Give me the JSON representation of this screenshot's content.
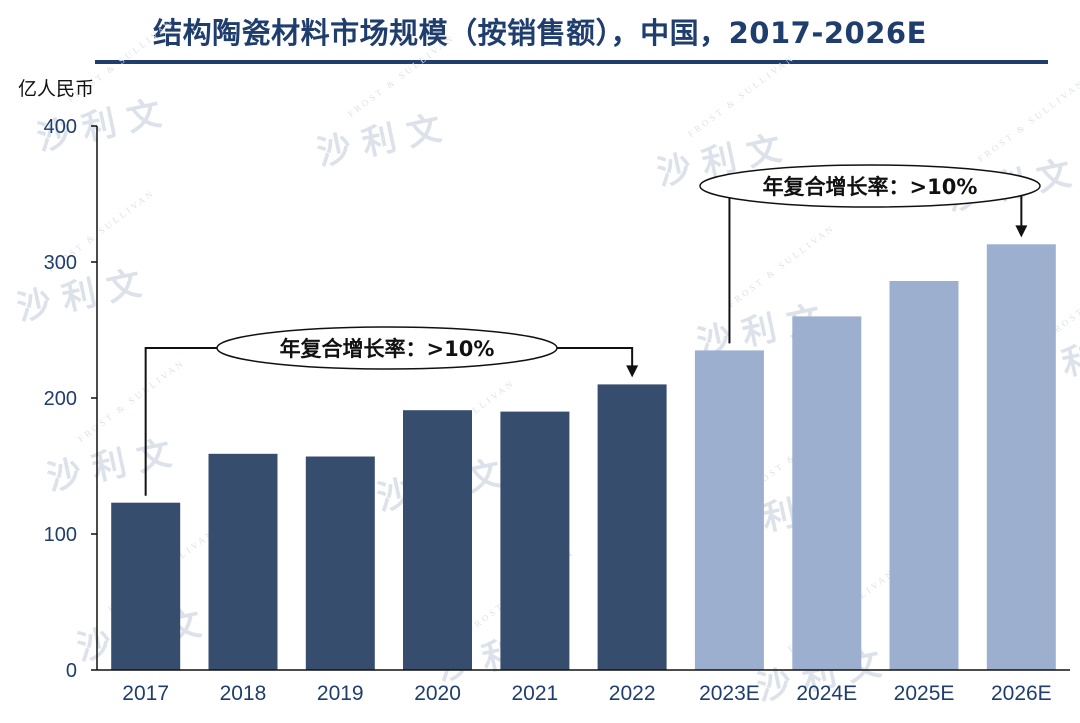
{
  "title": "结构陶瓷材料市场规模（按销售额），中国，2017-2026E",
  "colors": {
    "title": "#1f3e6e",
    "historical": "#374d6e",
    "forecast": "#9cafcf",
    "axis": "#111111"
  },
  "watermark": {
    "text": "沙 利 文",
    "subtext": "FROST & SULLIVAN"
  },
  "chart_data": {
    "type": "bar",
    "title": "结构陶瓷材料市场规模（按销售额），中国，2017-2026E",
    "ylabel": "亿人民币",
    "xlabel": "",
    "ylim": [
      0,
      400
    ],
    "yticks": [
      0,
      100,
      200,
      300,
      400
    ],
    "grid": false,
    "categories": [
      "2017",
      "2018",
      "2019",
      "2020",
      "2021",
      "2022",
      "2023E",
      "2024E",
      "2025E",
      "2026E"
    ],
    "values": [
      123,
      159,
      157,
      191,
      190,
      210,
      235,
      260,
      286,
      313
    ],
    "forecast": [
      false,
      false,
      false,
      false,
      false,
      false,
      true,
      true,
      true,
      true
    ],
    "annotations": [
      {
        "text": "年复合增长率：>10%",
        "from": "2017",
        "to": "2022"
      },
      {
        "text": "年复合增长率：>10%",
        "from": "2023E",
        "to": "2026E"
      }
    ]
  }
}
